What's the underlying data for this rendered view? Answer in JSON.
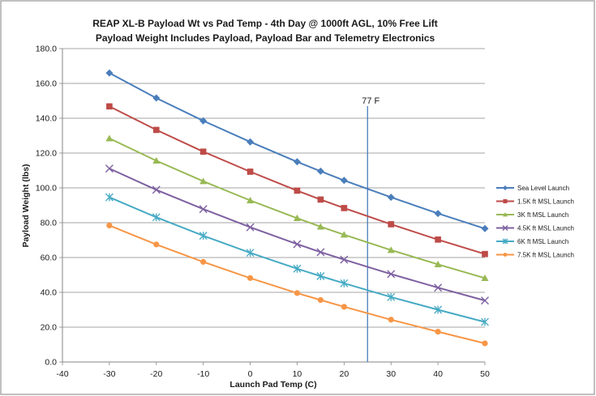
{
  "chart_data": {
    "type": "line",
    "title": "REAP XL-B Payload Wt vs Pad Temp - 4th Day @ 1000ft AGL, 10% Free Lift",
    "subtitle": "Payload Weight Includes Payload, Payload Bar and Telemetry Electronics",
    "xlabel": "Launch Pad Temp (C)",
    "ylabel": "Payload Weight (lbs)",
    "xlim": [
      -40,
      50
    ],
    "ylim": [
      0,
      180
    ],
    "xticks": [
      "-40",
      "-30",
      "-20",
      "-10",
      "0",
      "10",
      "20",
      "30",
      "40",
      "50"
    ],
    "yticks": [
      "0.0",
      "20.0",
      "40.0",
      "60.0",
      "80.0",
      "100.0",
      "120.0",
      "140.0",
      "160.0",
      "180.0"
    ],
    "grid": "horizontal",
    "legend_position": "right",
    "x": [
      -30,
      -20,
      -10,
      0,
      10,
      15,
      20,
      30,
      40,
      50
    ],
    "series": [
      {
        "name": "Sea Level Launch",
        "color": "#4a7ebb",
        "marker": "diamond",
        "values": [
          166.0,
          151.6,
          138.5,
          126.4,
          115.0,
          109.6,
          104.3,
          94.6,
          85.3,
          76.6
        ]
      },
      {
        "name": "1.5K ft MSL Launch",
        "color": "#be4b48",
        "marker": "square",
        "values": [
          146.8,
          133.3,
          120.8,
          109.3,
          98.4,
          93.3,
          88.4,
          79.1,
          70.3,
          62.0
        ]
      },
      {
        "name": "3K ft MSL Launch",
        "color": "#98b954",
        "marker": "triangle",
        "values": [
          128.4,
          115.6,
          103.8,
          92.8,
          82.6,
          77.7,
          73.1,
          64.3,
          56.1,
          48.2
        ]
      },
      {
        "name": "4.5K ft MSL Launch",
        "color": "#7d60a0",
        "marker": "x",
        "values": [
          111.1,
          98.9,
          87.8,
          77.4,
          67.7,
          63.1,
          58.8,
          50.5,
          42.7,
          35.3
        ]
      },
      {
        "name": "6K ft MSL Launch",
        "color": "#46aac4",
        "marker": "star",
        "values": [
          94.6,
          83.1,
          72.5,
          62.7,
          53.6,
          49.3,
          45.2,
          37.3,
          30.0,
          23.0
        ]
      },
      {
        "name": "7.5K ft MSL Launch",
        "color": "#f79646",
        "marker": "circle",
        "values": [
          78.4,
          67.5,
          57.5,
          48.2,
          39.6,
          35.6,
          31.7,
          24.3,
          17.4,
          10.7
        ]
      }
    ],
    "annotations": [
      {
        "text": "77 F",
        "x": 25,
        "type": "vertical-line",
        "color": "#4a7ebb"
      }
    ]
  }
}
